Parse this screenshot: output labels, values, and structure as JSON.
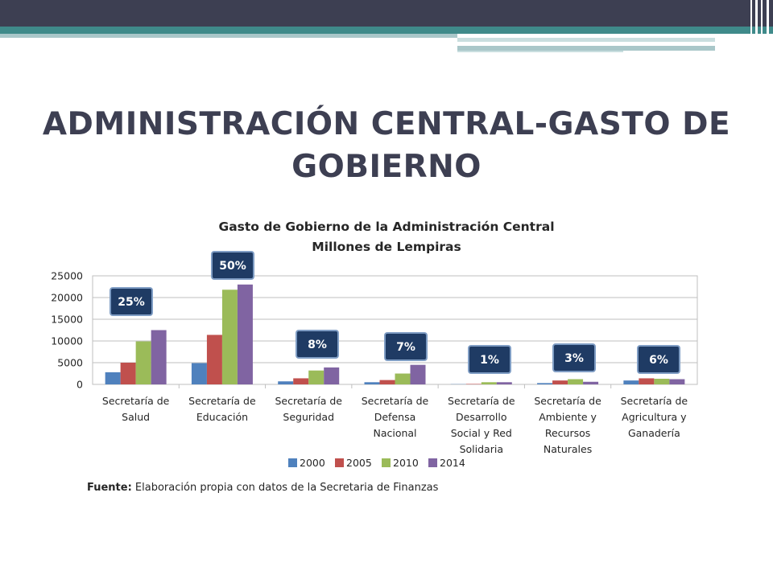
{
  "slide": {
    "title_line1": "ADMINISTRACIÓN CENTRAL-GASTO DE",
    "title_line2": "GOBIERNO"
  },
  "colors": {
    "topbar_dark": "#3d3f52",
    "topbar_teal": "#3f8a8a",
    "callout_fill": "#1f3b64",
    "callout_border": "#7f9dc4"
  },
  "chart_data": {
    "type": "bar",
    "title": "Gasto de Gobierno de la Administración Central",
    "subtitle": "Millones de Lempiras",
    "categories": [
      [
        "Secretaría de",
        "Salud"
      ],
      [
        "Secretaría de",
        "Educación"
      ],
      [
        "Secretaría de",
        "Seguridad"
      ],
      [
        "Secretaría de",
        "Defensa",
        "Nacional"
      ],
      [
        "Secretaría de",
        "Desarrollo",
        "Social y Red",
        "Solidaria"
      ],
      [
        "Secretaría de",
        "Ambiente y",
        "Recursos",
        "Naturales"
      ],
      [
        "Secretaría de",
        "Agricultura y",
        "Ganadería"
      ]
    ],
    "series": [
      {
        "name": "2000",
        "color": "#4f81bd",
        "values": [
          2800,
          4900,
          700,
          500,
          50,
          300,
          900
        ]
      },
      {
        "name": "2005",
        "color": "#c0504d",
        "values": [
          5000,
          11400,
          1400,
          1000,
          100,
          900,
          1400
        ]
      },
      {
        "name": "2010",
        "color": "#9bbb59",
        "values": [
          9900,
          21800,
          3200,
          2500,
          500,
          1200,
          1300
        ]
      },
      {
        "name": "2014",
        "color": "#8064a2",
        "values": [
          12500,
          23000,
          3900,
          4500,
          500,
          600,
          1200
        ]
      }
    ],
    "callouts": [
      "25%",
      "50%",
      "8%",
      "7%",
      "1%",
      "3%",
      "6%"
    ],
    "ylim": [
      0,
      25000
    ],
    "yticks": [
      "0",
      "5000",
      "10000",
      "15000",
      "20000",
      "25000"
    ],
    "grid": true,
    "legend": "bottom"
  },
  "source": {
    "label": "Fuente:",
    "text": " Elaboración propia con datos de la Secretaria de Finanzas"
  }
}
